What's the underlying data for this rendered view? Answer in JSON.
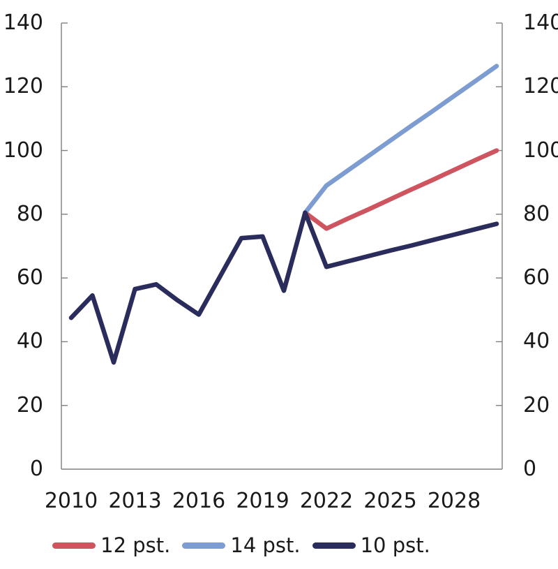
{
  "figure": {
    "background_color": "#ffffff",
    "axis_color": "#7f7f7f",
    "text_color": "#1a1a1a"
  },
  "chart_data": {
    "type": "line",
    "title": "",
    "xlabel": "",
    "ylabel": "",
    "xlim": [
      2010,
      2030
    ],
    "ylim": [
      0,
      140
    ],
    "y_ticks": [
      0,
      20,
      40,
      60,
      80,
      100,
      120,
      140
    ],
    "y_axis_sides": [
      "left",
      "right"
    ],
    "x_ticks": [
      2010,
      2013,
      2016,
      2019,
      2022,
      2025,
      2028
    ],
    "x_tick_labels": [
      "2010",
      "2013",
      "2016",
      "2019",
      "2022",
      "2025",
      "2028"
    ],
    "grid": false,
    "legend_position": "bottom",
    "series": [
      {
        "name": "12 pst.",
        "color": "#CE5560",
        "years": [
          2021,
          2022,
          2023,
          2024,
          2025,
          2026,
          2027,
          2028,
          2029,
          2030
        ],
        "values": [
          80.5,
          75.5,
          78.6,
          81.6,
          84.7,
          87.8,
          90.8,
          93.9,
          97.0,
          100.0
        ]
      },
      {
        "name": "14 pst.",
        "color": "#7C9CD2",
        "years": [
          2021,
          2022,
          2023,
          2024,
          2025,
          2026,
          2027,
          2028,
          2029,
          2030
        ],
        "values": [
          80.5,
          89.0,
          93.7,
          98.4,
          103.1,
          107.8,
          112.4,
          117.1,
          121.8,
          126.5
        ]
      },
      {
        "name": "10 pst.",
        "color": "#2A2C5C",
        "years": [
          2010,
          2011,
          2012,
          2013,
          2014,
          2015,
          2016,
          2017,
          2018,
          2019,
          2020,
          2021,
          2022,
          2023,
          2024,
          2025,
          2026,
          2027,
          2028,
          2029,
          2030
        ],
        "values": [
          47.5,
          54.5,
          33.5,
          56.5,
          58.0,
          53.0,
          48.5,
          60.5,
          72.5,
          73.0,
          56.0,
          80.5,
          63.5,
          65.2,
          66.9,
          68.6,
          70.2,
          71.9,
          73.6,
          75.3,
          77.0
        ]
      }
    ]
  },
  "legend": {
    "items": [
      {
        "label": "12 pst."
      },
      {
        "label": "14 pst."
      },
      {
        "label": "10 pst."
      }
    ]
  }
}
